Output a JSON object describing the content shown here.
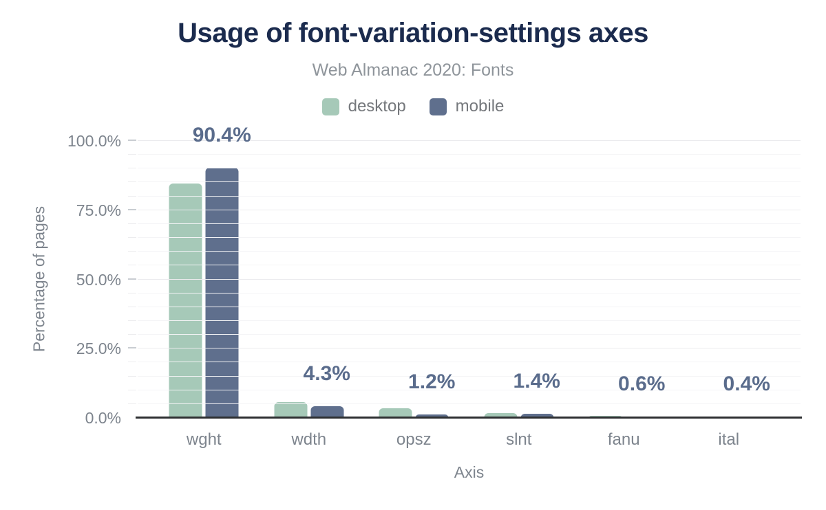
{
  "header": {
    "title": "Usage of font-variation-settings axes",
    "subtitle": "Web Almanac 2020: Fonts"
  },
  "legend": [
    {
      "label": "desktop",
      "color": "#a6c9b8"
    },
    {
      "label": "mobile",
      "color": "#5f6f8d"
    }
  ],
  "colors": {
    "title": "#1b2b4e",
    "subtitle": "#8f959b",
    "axis_text": "#7d848d",
    "value_label": "#5a6c8c",
    "axis_line": "#2d2f31",
    "desktop_bar": "#a6c9b8",
    "mobile_bar": "#5f6f8d"
  },
  "chart_data": {
    "type": "bar",
    "title": "Usage of font-variation-settings axes",
    "subtitle": "Web Almanac 2020: Fonts",
    "xlabel": "Axis",
    "ylabel": "Percentage of pages",
    "categories": [
      "wght",
      "wdth",
      "opsz",
      "slnt",
      "fanu",
      "ital"
    ],
    "series": [
      {
        "name": "desktop",
        "color": "#a6c9b8",
        "values": [
          84.6,
          5.6,
          3.5,
          1.8,
          0.7,
          0.6
        ]
      },
      {
        "name": "mobile",
        "color": "#5f6f8d",
        "values": [
          90.4,
          4.3,
          1.2,
          1.4,
          0.6,
          0.4
        ]
      }
    ],
    "value_labels": {
      "labeled_series": "mobile",
      "texts": [
        "90.4%",
        "4.3%",
        "1.2%",
        "1.4%",
        "0.6%",
        "0.4%"
      ]
    },
    "y_ticks": [
      {
        "value": 0,
        "label": "0.0%"
      },
      {
        "value": 25,
        "label": "25.0%"
      },
      {
        "value": 50,
        "label": "50.0%"
      },
      {
        "value": 75,
        "label": "75.0%"
      },
      {
        "value": 100,
        "label": "100.0%"
      }
    ],
    "ylim": [
      0,
      100
    ],
    "grid": "horizontal minor gridlines every 5%, ticks every 5%",
    "legend_position": "top"
  }
}
